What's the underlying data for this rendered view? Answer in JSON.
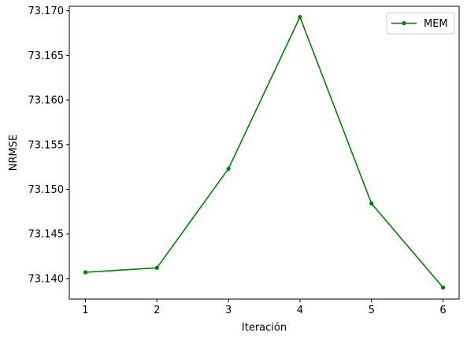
{
  "chart_data": {
    "type": "line",
    "title": "",
    "xlabel": "Iteración",
    "ylabel": "NRMSE",
    "xlim": [
      0.775,
      6.225
    ],
    "ylim": [
      73.1377,
      73.1705
    ],
    "xticks": [
      1,
      2,
      3,
      4,
      5,
      6
    ],
    "xtick_labels": [
      "1",
      "2",
      "3",
      "4",
      "5",
      "6"
    ],
    "yticks": [
      73.14,
      73.145,
      73.15,
      73.155,
      73.16,
      73.165,
      73.17
    ],
    "ytick_labels": [
      "73.140",
      "73.145",
      "73.150",
      "73.155",
      "73.160",
      "73.165",
      "73.170"
    ],
    "grid": false,
    "legend_position": "top-right",
    "series": [
      {
        "name": "MEM",
        "color": "#008000",
        "marker": "circle",
        "x": [
          1,
          2,
          3,
          4,
          5,
          6
        ],
        "y": [
          73.1407,
          73.1412,
          73.1523,
          73.1693,
          73.1484,
          73.139
        ]
      }
    ]
  }
}
